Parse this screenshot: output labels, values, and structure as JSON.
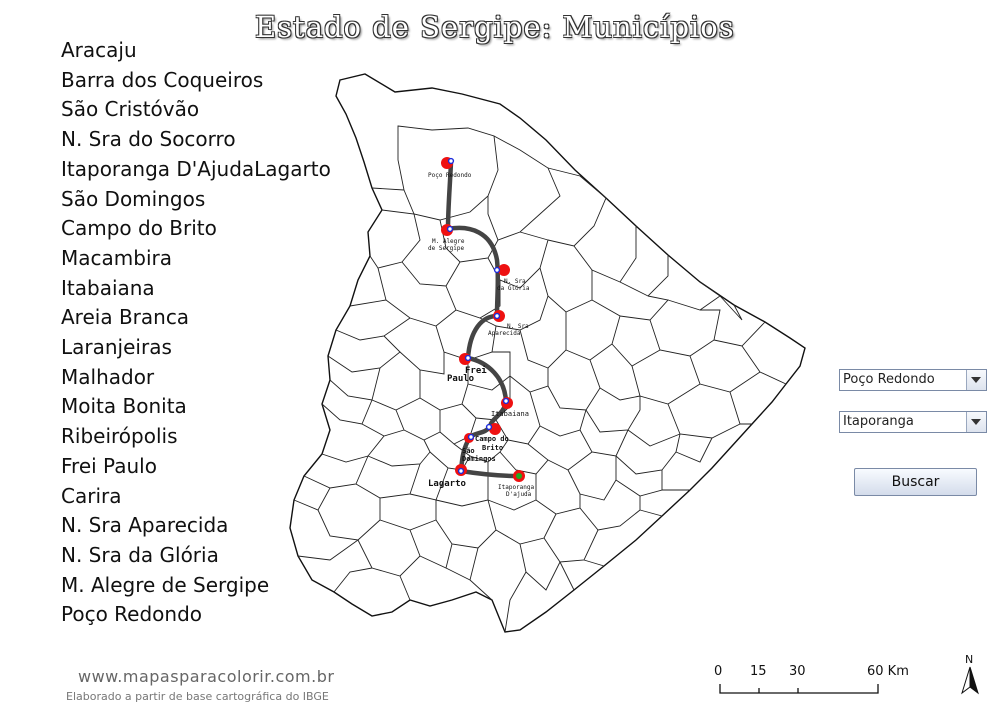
{
  "title": "Estado de Sergipe: Municípios",
  "municipalities": [
    "Aracaju",
    "Barra dos Coqueiros",
    "São Cristóvão",
    "N. Sra do Socorro",
    "Itaporanga D'AjudaLagarto",
    "São Domingos",
    "Campo do Brito",
    "Macambira",
    "Itabaiana",
    "Areia Branca",
    "Laranjeiras",
    "Malhador",
    "Moita Bonita",
    "Ribeirópolis",
    "Frei Paulo",
    "Carira",
    "N. Sra Aparecida",
    "N. Sra da Glória",
    "M. Alegre de Sergipe",
    "Poço Redondo"
  ],
  "map": {
    "labels": {
      "poco_redondo": "Poço Redondo",
      "m_alegre_1": "M. Alegre",
      "m_alegre_2": "de Sergipe",
      "n_sra_gloria_1": "N. Sra",
      "n_sra_gloria_2": "da Glória",
      "n_sra_aparecida_1": "N. Sra",
      "n_sra_aparecida_2": "Aparecida",
      "frei_paulo_1": "Frei",
      "frei_paulo_2": "Paulo",
      "itabaiana": "Itabaiana",
      "campo_do_brito_1": "Campo do",
      "campo_do_brito_2": "Brito",
      "sao_domingos_1": "São",
      "sao_domingos_2": "Domingos",
      "lagarto": "Lagarto",
      "itaporanga_1": "Itaporanga",
      "itaporanga_2": "D'ajuda"
    },
    "colors": {
      "route": "#444444",
      "city_marker": "#ee1111",
      "destination_marker": "#22aa22",
      "node": "#1a2bdd"
    }
  },
  "controls": {
    "origin_select": {
      "value": "Poço Redondo"
    },
    "destination_select": {
      "value": "Itaporanga"
    },
    "search_button": "Buscar"
  },
  "footer": {
    "url": "www.mapasparacolorir.com.br",
    "credit": "Elaborado a partir de base cartográfica do IBGE"
  },
  "scale": {
    "ticks": [
      "0",
      "15",
      "30",
      "60 Km"
    ]
  },
  "north_label": "N"
}
